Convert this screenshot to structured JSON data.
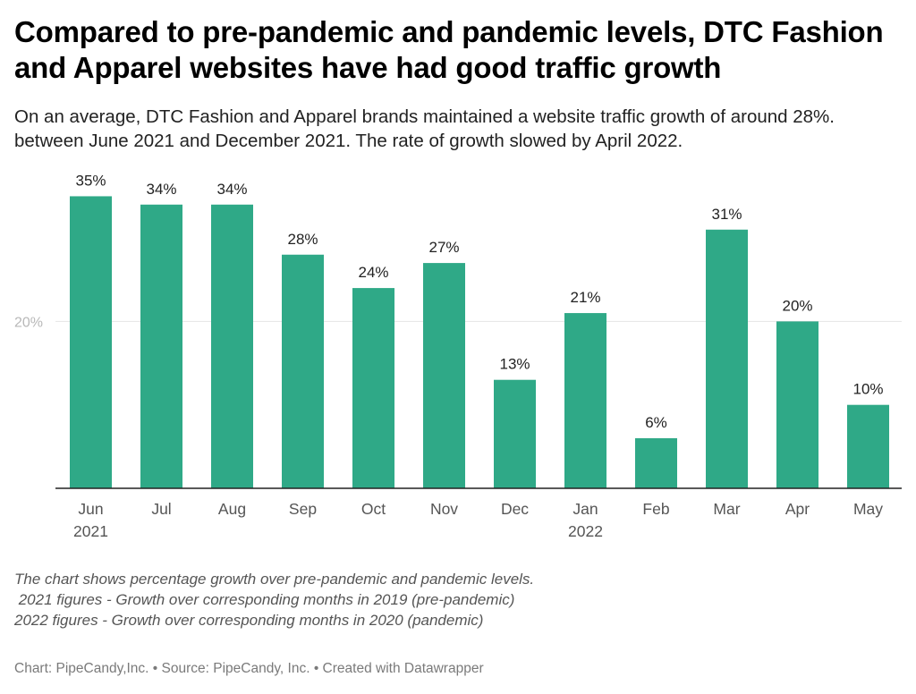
{
  "title": "Compared to pre-pandemic and pandemic levels, DTC Fashion and Apparel websites have had good traffic growth",
  "subtitle": "On an average, DTC Fashion and Apparel brands maintained a website traffic growth of around 28%. between June 2021 and December 2021. The rate of growth slowed by April 2022.",
  "colors": {
    "bar": "#2fa987",
    "gridline": "#e4e4e4",
    "axis": "#222222",
    "tick_label": "#b8b8b8",
    "category_label": "#555555",
    "value_label": "#222222"
  },
  "chart_data": {
    "type": "bar",
    "title": "Compared to pre-pandemic and pandemic levels, DTC Fashion and Apparel websites have had good traffic growth",
    "xlabel": "",
    "ylabel": "",
    "categories": [
      "Jun",
      "Jul",
      "Aug",
      "Sep",
      "Oct",
      "Nov",
      "Dec",
      "Jan",
      "Feb",
      "Mar",
      "Apr",
      "May"
    ],
    "year_labels": [
      "2021",
      "",
      "",
      "",
      "",
      "",
      "",
      "2022",
      "",
      "",
      "",
      ""
    ],
    "values": [
      35,
      34,
      34,
      28,
      24,
      27,
      13,
      21,
      6,
      31,
      20,
      10
    ],
    "value_labels": [
      "35%",
      "34%",
      "34%",
      "28%",
      "24%",
      "27%",
      "13%",
      "21%",
      "6%",
      "31%",
      "20%",
      "10%"
    ],
    "y_ticks": [
      20
    ],
    "y_tick_labels": [
      "20%"
    ],
    "ylim": [
      0,
      35
    ],
    "grid": true,
    "legend": "none"
  },
  "notes": [
    "The chart shows percentage growth over pre-pandemic and pandemic levels.",
    " 2021 figures - Growth over corresponding months in 2019 (pre-pandemic)",
    "2022 figures - Growth over corresponding months in 2020 (pandemic)"
  ],
  "footer": "Chart: PipeCandy,Inc. • Source: PipeCandy, Inc. • Created with Datawrapper"
}
